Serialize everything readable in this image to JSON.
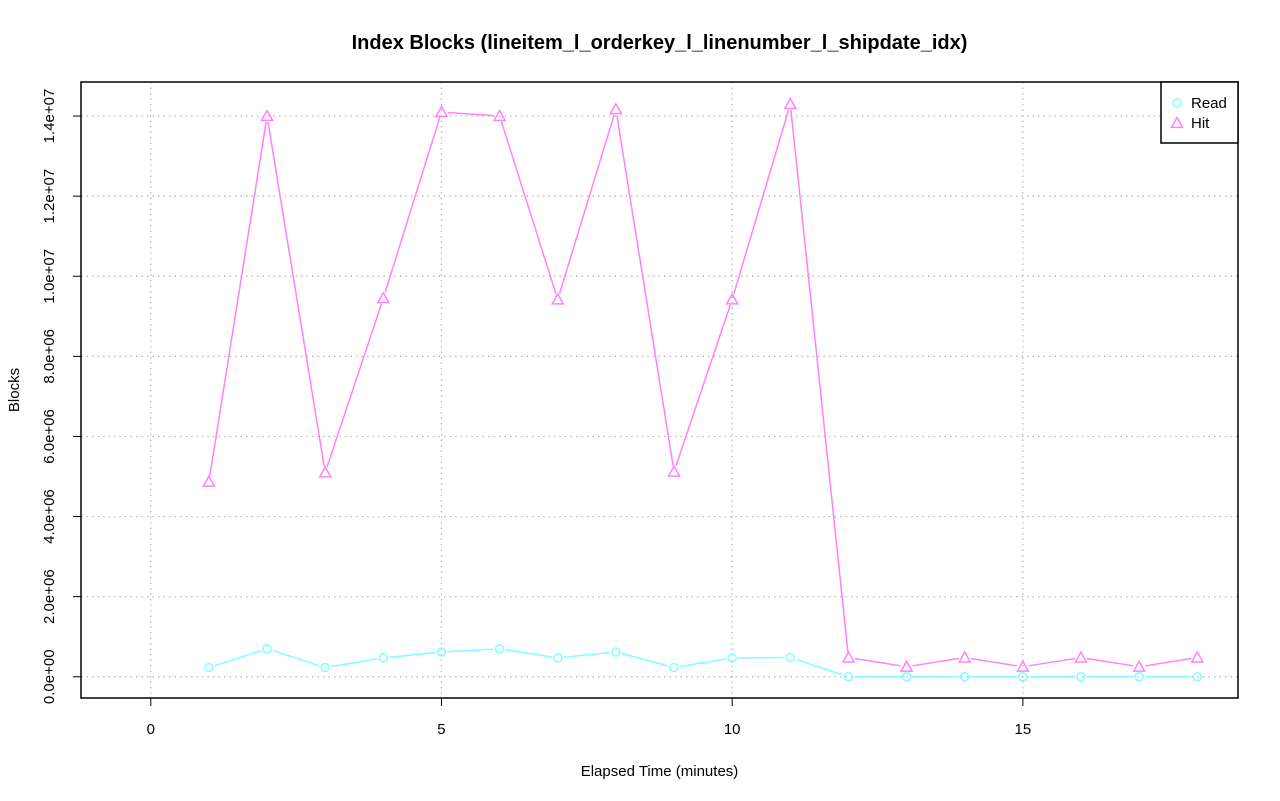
{
  "chart_data": {
    "type": "line",
    "title": "Index Blocks (lineitem_l_orderkey_l_linenumber_l_shipdate_idx)",
    "xlabel": "Elapsed Time (minutes)",
    "ylabel": "Blocks",
    "xlim": [
      -1.2,
      18.7
    ],
    "ylim": [
      -530000,
      14850000
    ],
    "x_ticks": [
      0,
      5,
      10,
      15
    ],
    "x_tick_labels": [
      "0",
      "5",
      "10",
      "15"
    ],
    "y_ticks": [
      0,
      2000000,
      4000000,
      6000000,
      8000000,
      10000000,
      12000000,
      14000000
    ],
    "y_tick_labels": [
      "0.0e+00",
      "2.0e+06",
      "4.0e+06",
      "6.0e+06",
      "8.0e+06",
      "1.0e+07",
      "1.2e+07",
      "1.4e+07"
    ],
    "grid": true,
    "legend_position": "top-right",
    "x": [
      1,
      2,
      3,
      4,
      5,
      6,
      7,
      8,
      9,
      10,
      11,
      12,
      13,
      14,
      15,
      16,
      17,
      18
    ],
    "series": [
      {
        "name": "Read",
        "color": "#80ffff",
        "marker": "circle",
        "values": [
          230000,
          700000,
          230000,
          470000,
          620000,
          700000,
          470000,
          620000,
          230000,
          470000,
          480000,
          0,
          0,
          0,
          0,
          0,
          0,
          0
        ]
      },
      {
        "name": "Hit",
        "color": "#ff80ff",
        "marker": "triangle",
        "values": [
          4870000,
          14000000,
          5100000,
          9450000,
          14100000,
          14000000,
          9420000,
          14170000,
          5120000,
          9420000,
          14300000,
          480000,
          250000,
          480000,
          250000,
          480000,
          250000,
          480000
        ]
      }
    ]
  }
}
